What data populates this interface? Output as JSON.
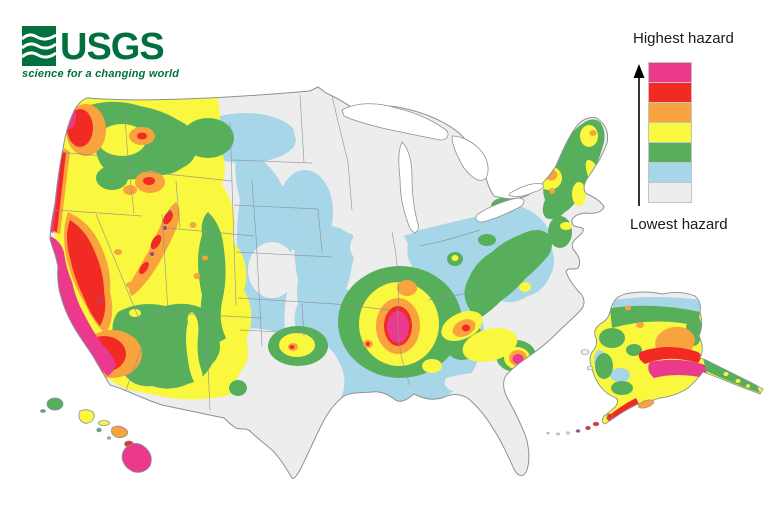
{
  "logo": {
    "title": "USGS",
    "tagline": "science for a changing world",
    "color": "#00703C"
  },
  "legend": {
    "highest_label": "Highest hazard",
    "lowest_label": "Lowest hazard",
    "levels": [
      {
        "name": "highest",
        "color": "#EB3A8D"
      },
      {
        "name": "very-high",
        "color": "#F12B24"
      },
      {
        "name": "high",
        "color": "#F8A33D"
      },
      {
        "name": "moderate",
        "color": "#FAF73F"
      },
      {
        "name": "low",
        "color": "#57AF5C"
      },
      {
        "name": "very-low",
        "color": "#A6D6E7"
      },
      {
        "name": "lowest",
        "color": "#EDEDED"
      }
    ]
  },
  "map": {
    "outline_color": "#8C9196",
    "purple_accent": "#9C4789",
    "background": "#FFFFFF"
  }
}
